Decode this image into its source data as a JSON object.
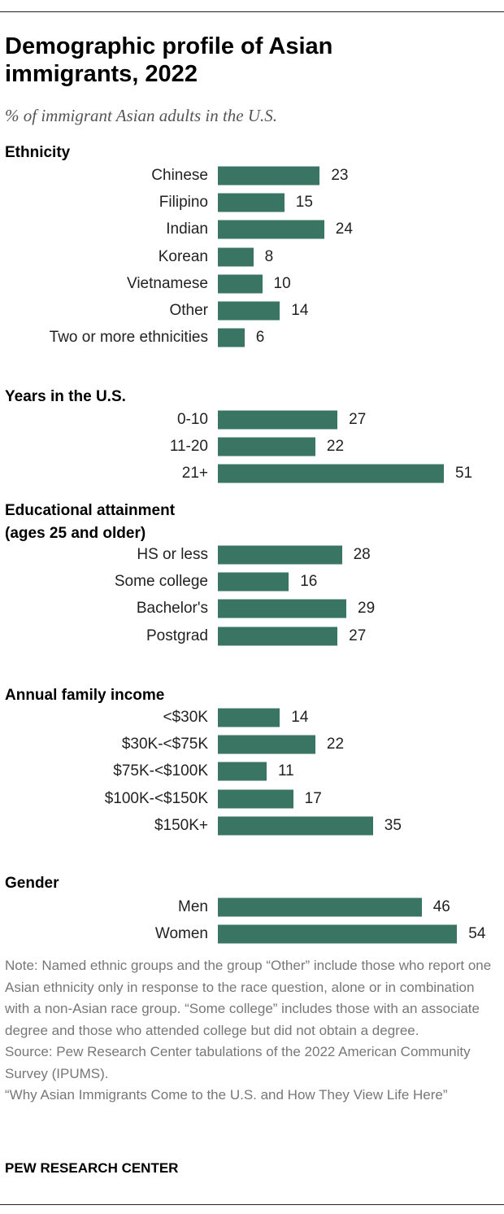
{
  "chart_data": {
    "type": "bar",
    "title": "Demographic profile of Asian immigrants, 2022",
    "subtitle": "% of immigrant Asian adults in the U.S.",
    "groups": [
      {
        "name": "Ethnicity",
        "categories": [
          "Chinese",
          "Filipino",
          "Indian",
          "Korean",
          "Vietnamese",
          "Other",
          "Two or more ethnicities"
        ],
        "values": [
          23,
          15,
          24,
          8,
          10,
          14,
          6
        ]
      },
      {
        "name": "Years in the U.S.",
        "categories": [
          "0-10",
          "11-20",
          "21+"
        ],
        "values": [
          27,
          22,
          51
        ]
      },
      {
        "name": "Educational attainment (ages 25 and older)",
        "categories": [
          "HS or less",
          "Some college",
          "Bachelor's",
          "Postgrad"
        ],
        "values": [
          28,
          16,
          29,
          27
        ]
      },
      {
        "name": "Annual family income",
        "categories": [
          "<$30K",
          "$30K-<$75K",
          "$75K-<$100K",
          "$100K-<$150K",
          "$150K+"
        ],
        "values": [
          14,
          22,
          11,
          17,
          35
        ]
      },
      {
        "name": "Gender",
        "categories": [
          "Men",
          "Women"
        ],
        "values": [
          46,
          54
        ]
      }
    ],
    "bar_color": "#3a7563"
  },
  "note": "Note: Named ethnic groups and the group “Other” include those who report one Asian ethnicity only in response to the race question, alone or in combination with a non-Asian race group. “Some college” includes those with an associate degree and those who attended college but did not obtain a degree.",
  "source": "Source: Pew Research Center tabulations of the 2022 American Community Survey (IPUMS).",
  "report": "“Why Asian Immigrants Come to the U.S. and How They View Life Here”",
  "brand": "PEW RESEARCH CENTER"
}
